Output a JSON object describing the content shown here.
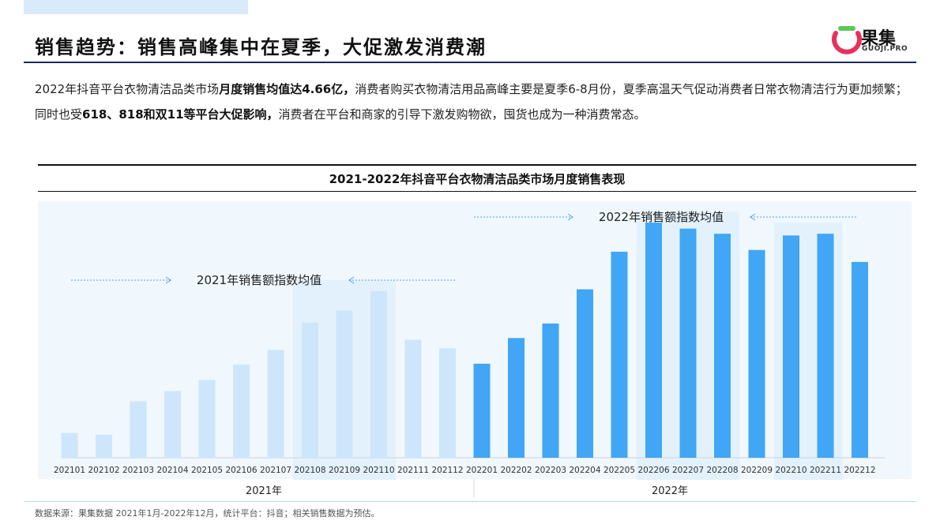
{
  "header": {
    "title": "销售趋势：销售高峰集中在夏季，大促激发消费潮",
    "logo_text": "果集",
    "logo_sub": "GUOJI.PRO"
  },
  "description": {
    "p1": "2022年抖音平台衣物清洁品类市场",
    "b1": "月度销售均值达4.66亿，",
    "p2": "消费者购买衣物清洁用品高峰主要是夏季6-8月份，夏季高温天气促动消费者日常衣物清洁行为更加频繁；同时也受",
    "b2": "618、818和双11等平台大促影响，",
    "p3": "消费者在平台和商家的引导下激发购物欲，囤货也成为一种消费常态。"
  },
  "chart_data": {
    "type": "bar",
    "title": "2021-2022年抖音平台衣物清洁品类市场月度销售表现",
    "categories": [
      "202101",
      "202102",
      "202103",
      "202104",
      "202105",
      "202106",
      "202107",
      "202108",
      "202109",
      "202110",
      "202111",
      "202112",
      "202201",
      "202202",
      "202203",
      "202204",
      "202205",
      "202206",
      "202207",
      "202208",
      "202209",
      "202210",
      "202211",
      "202212"
    ],
    "values": [
      29,
      27,
      66,
      78,
      91,
      109,
      126,
      158,
      172,
      195,
      138,
      128,
      110,
      140,
      157,
      197,
      241,
      275,
      268,
      262,
      243,
      260,
      262,
      229
    ],
    "ylim": [
      0,
      300
    ],
    "group_labels": [
      "2021年",
      "2022年"
    ],
    "annotations": [
      "2021年销售额指数均值",
      "2022年销售额指数均值"
    ],
    "colors": {
      "2021": "#cde6fb",
      "2022": "#40a6f5",
      "highlight": "#e3f1fc",
      "panel": "#f0f7fd"
    }
  },
  "footer": {
    "source": "数据来源：果集数据 2021年1月-2022年12月，统计平台：抖音；相关销售数据为预估。"
  }
}
